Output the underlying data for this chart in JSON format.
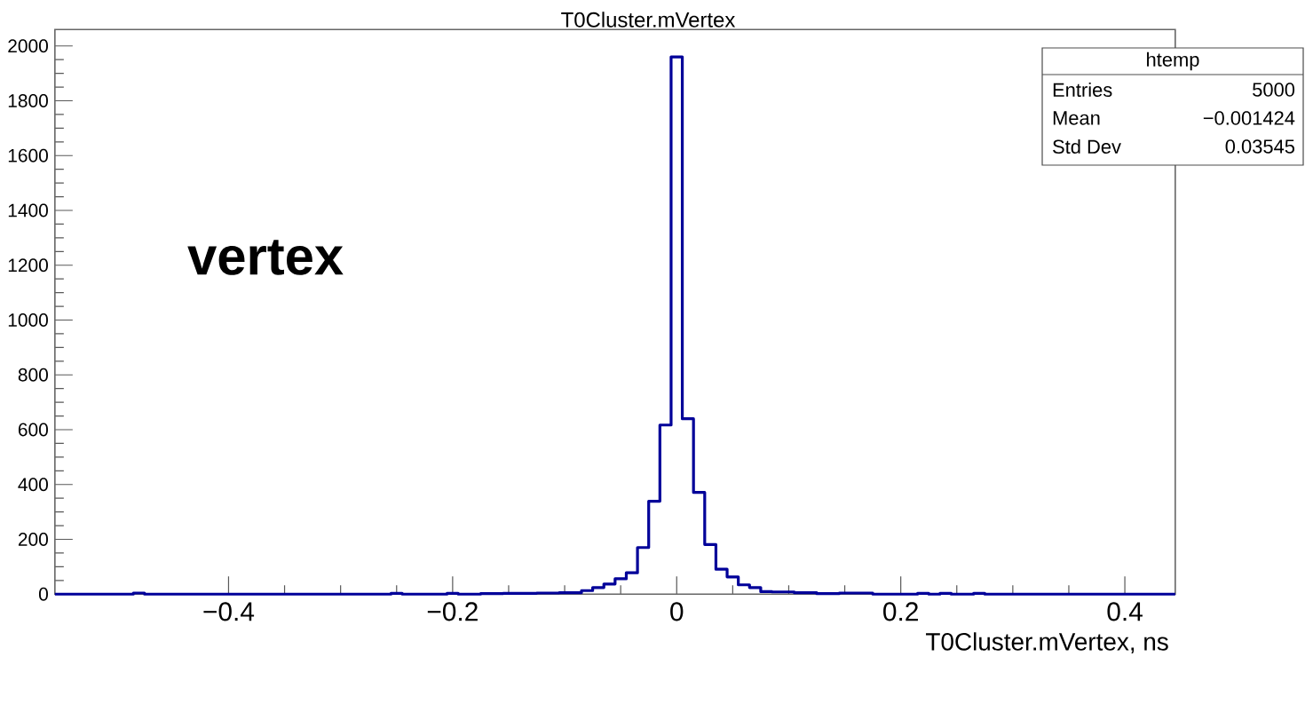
{
  "chart_data": {
    "type": "histogram",
    "title": "T0Cluster.mVertex",
    "xlabel": "T0Cluster.mVertex, ns",
    "bins": [
      -0.555,
      -0.545,
      -0.535,
      -0.525,
      -0.515,
      -0.505,
      -0.495,
      -0.485,
      -0.475,
      -0.465,
      -0.455,
      -0.445,
      -0.435,
      -0.425,
      -0.415,
      -0.405,
      -0.395,
      -0.385,
      -0.375,
      -0.365,
      -0.355,
      -0.345,
      -0.335,
      -0.325,
      -0.315,
      -0.305,
      -0.295,
      -0.285,
      -0.275,
      -0.265,
      -0.255,
      -0.245,
      -0.235,
      -0.225,
      -0.215,
      -0.205,
      -0.195,
      -0.185,
      -0.175,
      -0.165,
      -0.155,
      -0.145,
      -0.135,
      -0.125,
      -0.115,
      -0.105,
      -0.095,
      -0.085,
      -0.075,
      -0.065,
      -0.055,
      -0.045,
      -0.035,
      -0.025,
      -0.015,
      -0.005,
      0.005,
      0.015,
      0.025,
      0.035,
      0.045,
      0.055,
      0.065,
      0.075,
      0.085,
      0.095,
      0.105,
      0.115,
      0.125,
      0.135,
      0.145,
      0.155,
      0.165,
      0.175,
      0.185,
      0.195,
      0.205,
      0.215,
      0.225,
      0.235,
      0.245,
      0.255,
      0.265,
      0.275,
      0.285,
      0.295,
      0.305,
      0.315,
      0.325,
      0.335,
      0.345,
      0.355,
      0.365,
      0.375,
      0.385,
      0.395,
      0.405,
      0.415,
      0.425,
      0.435,
      0.445
    ],
    "values": [
      0,
      0,
      0,
      0,
      0,
      0,
      0,
      4,
      0,
      0,
      0,
      0,
      0,
      0,
      0,
      0,
      0,
      0,
      0,
      0,
      0,
      0,
      0,
      0,
      0,
      0,
      0,
      0,
      0,
      0,
      3,
      0,
      0,
      0,
      0,
      3,
      0,
      0,
      2,
      2,
      3,
      3,
      3,
      4,
      4,
      5,
      5,
      13,
      24,
      37,
      56,
      78,
      170,
      339,
      617,
      1960,
      640,
      371,
      181,
      91,
      63,
      34,
      24,
      9,
      8,
      8,
      5,
      5,
      2,
      2,
      4,
      4,
      4,
      0,
      0,
      0,
      0,
      3,
      0,
      3,
      0,
      0,
      3,
      0,
      0,
      0,
      0,
      0,
      0,
      0,
      0,
      0,
      0,
      0,
      0,
      0,
      0,
      0,
      0,
      0
    ],
    "color": "#000099",
    "xlim": [
      -0.555,
      0.445
    ],
    "xticks": [
      {
        "value": -0.4,
        "label": "−0.4"
      },
      {
        "value": -0.2,
        "label": "−0.2"
      },
      0,
      0.2,
      0.4
    ],
    "ylim": [
      0,
      2060
    ],
    "yticks": [
      0,
      200,
      400,
      600,
      800,
      1000,
      1200,
      1400,
      1600,
      1800,
      2000
    ],
    "grid": false,
    "annotations": [
      "htemp",
      "Entries",
      "5000",
      "Mean",
      "−0.001424",
      "Std Dev",
      "0.03545",
      "vertex"
    ]
  }
}
